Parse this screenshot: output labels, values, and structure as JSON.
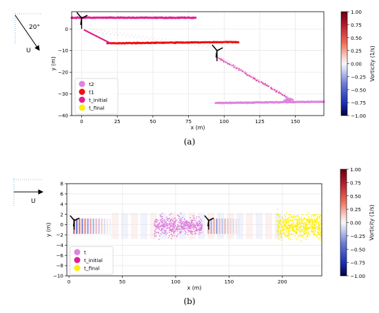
{
  "chart_data": [
    {
      "panel": "(a)",
      "type": "scatter",
      "xlabel": "x (m)",
      "ylabel": "y (m)",
      "xlim": [
        -7,
        170
      ],
      "ylim": [
        -40,
        8
      ],
      "xticks": [
        0,
        25,
        50,
        75,
        100,
        125,
        150
      ],
      "yticks": [
        0,
        -10,
        -20,
        -30,
        -40
      ],
      "grid": true,
      "legend_position": "bottom-left",
      "inset": {
        "angle_label": "20°",
        "flow_label": "U"
      },
      "series": [
        {
          "name": "t2",
          "color": "#df83df",
          "x": [
            94,
            170
          ],
          "y": [
            -34.2,
            -33.6
          ]
        },
        {
          "name": "t1",
          "color": "#ee1111",
          "x": [
            18,
            110
          ],
          "y": [
            -6.6,
            -6.0
          ]
        },
        {
          "name": "t_initial",
          "color": "#e0208f",
          "x": [
            -7,
            80
          ],
          "y": [
            5.2,
            5.2
          ]
        },
        {
          "name": "t_final",
          "color": "#ffee00",
          "x": [],
          "y": []
        }
      ],
      "colorbar": {
        "label": "Vorticity (1/s)",
        "min": -1.0,
        "max": 1.0,
        "ticks": [
          "1.00",
          "0.75",
          "0.50",
          "0.25",
          "0.00",
          "−0.25",
          "−0.50",
          "−0.75",
          "−1.00"
        ]
      }
    },
    {
      "panel": "(b)",
      "type": "scatter",
      "xlabel": "x (m)",
      "ylabel": "y (m)",
      "xlim": [
        -2,
        237
      ],
      "ylim": [
        -10,
        8
      ],
      "xticks": [
        0,
        50,
        100,
        150,
        200
      ],
      "yticks": [
        8,
        6,
        4,
        2,
        0,
        -2,
        -4,
        -6,
        -8,
        -10
      ],
      "grid": true,
      "legend_position": "bottom-left",
      "inset": {
        "flow_label": "U"
      },
      "series": [
        {
          "name": "t",
          "color": "#df83df",
          "x": [
            80,
            125
          ],
          "y": [
            -3,
            2.5
          ]
        },
        {
          "name": "t_initial",
          "color": "#e0208f",
          "x": [],
          "y": []
        },
        {
          "name": "t_final",
          "color": "#ffee00",
          "x": [
            195,
            237
          ],
          "y": [
            -3.5,
            3
          ]
        }
      ],
      "colorbar": {
        "label": "Vorticity (1/s)",
        "min": -1.0,
        "max": 1.0,
        "ticks": [
          "1.00",
          "0.75",
          "0.50",
          "0.25",
          "0.00",
          "−0.25",
          "−0.50",
          "−0.75",
          "−1.00"
        ]
      }
    }
  ],
  "captions": [
    "(a)",
    "(b)"
  ]
}
